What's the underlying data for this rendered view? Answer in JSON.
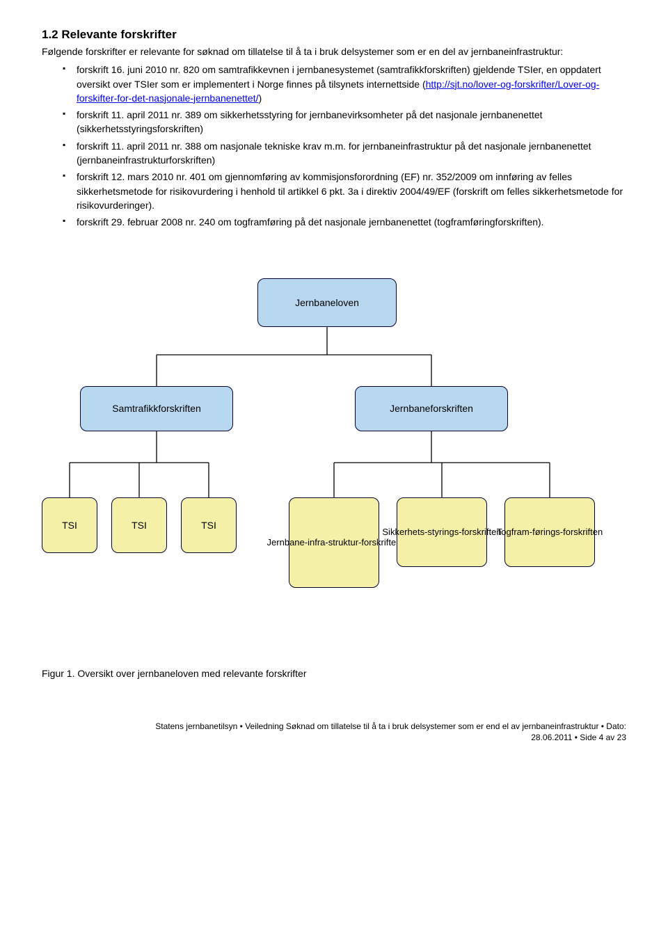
{
  "heading": "1.2 Relevante forskrifter",
  "intro": "Følgende forskrifter er relevante for søknad om tillatelse til å ta i bruk delsystemer som er en del av jernbaneinfrastruktur:",
  "bullets": [
    {
      "pre": "forskrift 16. juni 2010 nr. 820 om samtrafikkevnen i jernbanesystemet (samtrafikkforskriften) gjeldende TSIer, en oppdatert oversikt over TSIer som er implementert i Norge finnes på tilsynets internettside (",
      "link": "http://sjt.no/lover-og-forskrifter/Lover-og-forskifter-for-det-nasjonale-jernbanenettet/",
      "post": ")"
    },
    {
      "pre": "forskrift 11. april 2011 nr. 389 om sikkerhetsstyring for jernbanevirksomheter på det nasjonale jernbanenettet (sikkerhetsstyringsforskriften)",
      "link": "",
      "post": ""
    },
    {
      "pre": "forskrift 11. april 2011 nr. 388 om nasjonale tekniske krav m.m. for jernbaneinfrastruktur på det nasjonale jernbanenettet (jernbaneinfrastrukturforskriften)",
      "link": "",
      "post": ""
    },
    {
      "pre": "forskrift 12. mars 2010 nr. 401 om gjennomføring av kommisjonsforordning (EF) nr. 352/2009 om innføring av felles sikkerhetsmetode for risikovurdering i henhold til artikkel 6 pkt. 3a i direktiv 2004/49/EF (forskrift om felles sikkerhetsmetode for risikovurderinger).",
      "link": "",
      "post": ""
    },
    {
      "pre": "forskrift 29. februar 2008 nr. 240 om togframføring på det nasjonale jernbanenettet (togframføringforskriften).",
      "link": "",
      "post": ""
    }
  ],
  "diagram": {
    "colors": {
      "blue_fill": "#b8d8f0",
      "yellow_fill": "#f5f0a8",
      "border": "#000033",
      "line": "#000000"
    },
    "nodes": {
      "top": "Jernbaneloven",
      "mid_left": "Samtrafikkforskriften",
      "mid_right": "Jernbaneforskriften",
      "tsi": "TSI",
      "b1_lines": [
        "Jernbane-",
        "infra-",
        "struktur-",
        "forskriften"
      ],
      "b2_lines": [
        "Sikkerhets-",
        "styrings-",
        "forskriften"
      ],
      "b3_lines": [
        "Togfram-",
        "førings-",
        "forskriften"
      ]
    }
  },
  "figure_caption": "Figur 1. Oversikt over jernbaneloven med relevante forskrifter",
  "footer_line1": "Statens jernbanetilsyn • Veiledning Søknad om tillatelse til å ta i bruk delsystemer som er end el av jernbaneinfrastruktur • Dato:",
  "footer_line2": "28.06.2011 • Side 4 av 23"
}
